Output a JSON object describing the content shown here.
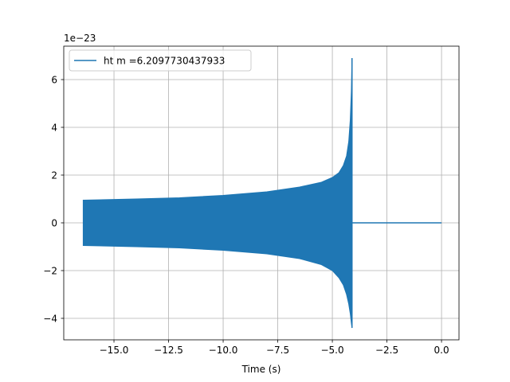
{
  "chart_data": {
    "type": "line",
    "title": "",
    "xlabel": "Time (s)",
    "ylabel": "",
    "y_scale_label": "1e−23",
    "xlim": [
      -17.3,
      0.8
    ],
    "ylim": [
      -4.9,
      7.4
    ],
    "xticks": [
      -15.0,
      -12.5,
      -10.0,
      -7.5,
      -5.0,
      -2.5,
      0.0
    ],
    "xtick_labels": [
      "−15.0",
      "−12.5",
      "−10.0",
      "−7.5",
      "−5.0",
      "−2.5",
      "0.0"
    ],
    "yticks": [
      -4,
      -2,
      0,
      2,
      4,
      6
    ],
    "ytick_labels": [
      "−4",
      "−2",
      "0",
      "2",
      "4",
      "6"
    ],
    "grid": true,
    "legend_position": "top-left",
    "series": [
      {
        "name": "ht m =6.2097730437933",
        "color": "#1f77b4",
        "x_range": [
          -16.4,
          0.0
        ],
        "merger_time": -4.1,
        "envelope": {
          "t": [
            -16.4,
            -14.0,
            -12.0,
            -10.0,
            -8.0,
            -6.5,
            -5.5,
            -5.0,
            -4.7,
            -4.5,
            -4.35,
            -4.25,
            -4.18,
            -4.13,
            -4.1
          ],
          "upper": [
            0.95,
            1.0,
            1.05,
            1.15,
            1.3,
            1.5,
            1.7,
            1.9,
            2.1,
            2.4,
            2.8,
            3.4,
            4.3,
            5.5,
            6.9
          ],
          "lower": [
            -0.95,
            -1.0,
            -1.05,
            -1.15,
            -1.3,
            -1.5,
            -1.75,
            -2.0,
            -2.3,
            -2.6,
            -3.0,
            -3.4,
            -3.8,
            -4.2,
            -4.4
          ]
        }
      }
    ]
  }
}
